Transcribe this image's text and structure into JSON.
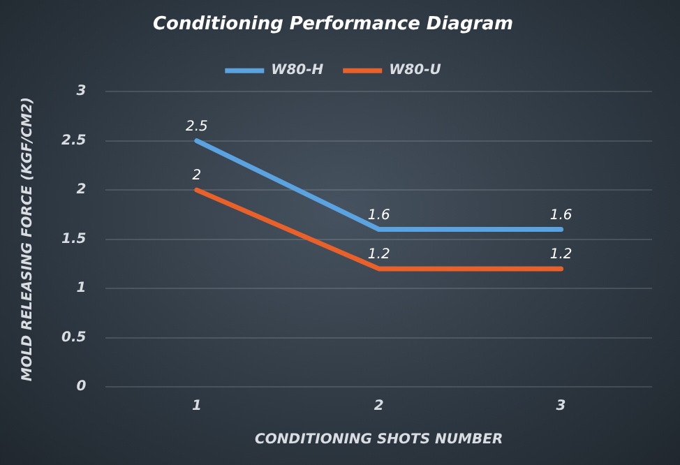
{
  "chart_data": {
    "type": "line",
    "title": "Conditioning Performance Diagram",
    "xlabel": "CONDITIONING SHOTS NUMBER",
    "ylabel": "MOLD RELEASING FORCE (KGF/CM2)",
    "categories": [
      "1",
      "2",
      "3"
    ],
    "series": [
      {
        "name": "W80-H",
        "color": "#5ba3e0",
        "values": [
          2.5,
          1.6,
          1.6
        ]
      },
      {
        "name": "W80-U",
        "color": "#e8602a",
        "values": [
          2,
          1.2,
          1.2
        ]
      }
    ],
    "ylim": [
      0,
      3
    ],
    "yticks": [
      0,
      0.5,
      1,
      1.5,
      2,
      2.5,
      3
    ],
    "grid": "y",
    "legend": "top",
    "marker": "none",
    "line_style": "solid",
    "data_labels": true
  }
}
